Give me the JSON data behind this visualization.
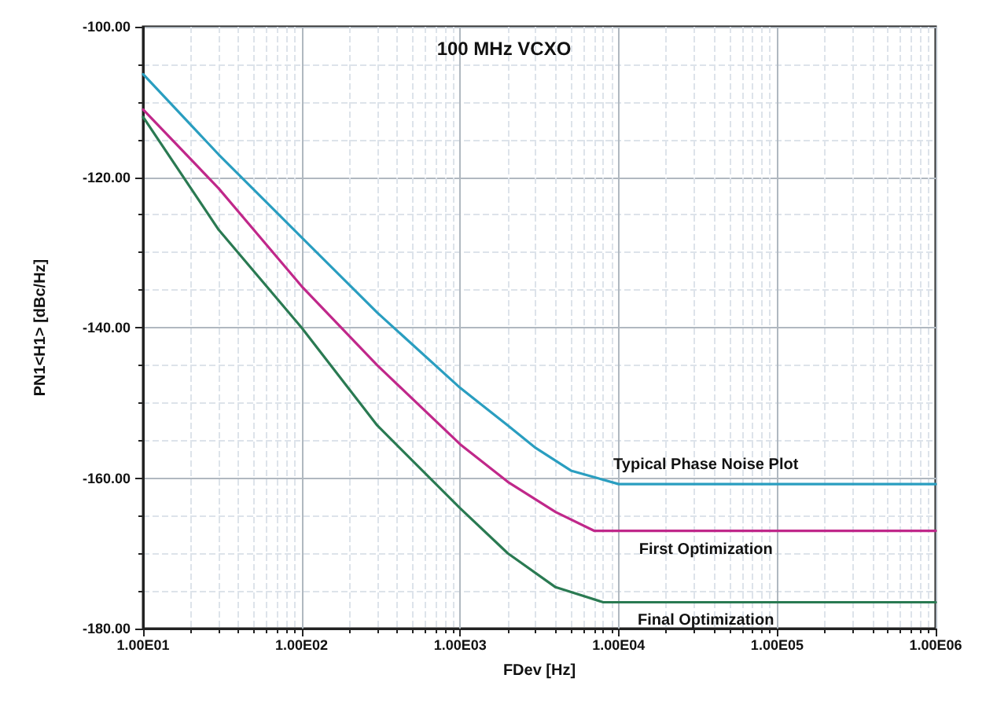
{
  "chart_data": {
    "type": "line",
    "title": "100 MHz VCXO",
    "xlabel": "FDev [Hz]",
    "ylabel": "PN1<H1> [dBc/Hz]",
    "log": "x",
    "grid": true,
    "legend": false,
    "marker": "none",
    "line_style": "solid",
    "xlim": [
      10,
      1000000
    ],
    "ylim": [
      -180,
      -100
    ],
    "xticks": [
      {
        "value": 10,
        "label": "1.00E01"
      },
      {
        "value": 100,
        "label": "1.00E02"
      },
      {
        "value": 1000,
        "label": "1.00E03"
      },
      {
        "value": 10000,
        "label": "1.00E04"
      },
      {
        "value": 100000,
        "label": "1.00E05"
      },
      {
        "value": 1000000,
        "label": "1.00E06"
      }
    ],
    "yticks": [
      {
        "value": -180,
        "label": "-180.00"
      },
      {
        "value": -160,
        "label": "-160.00"
      },
      {
        "value": -140,
        "label": "-140.00"
      },
      {
        "value": -120,
        "label": "-120.00"
      },
      {
        "value": -100,
        "label": "-100.00"
      }
    ],
    "series": [
      {
        "name": "Typical Phase Noise Plot",
        "color": "#2a9ec0",
        "x": [
          10,
          30,
          100,
          300,
          1000,
          2000,
          3000,
          5000,
          10000,
          1000000
        ],
        "values": [
          -106.3,
          -117,
          -128,
          -138,
          -148,
          -153,
          -156,
          -159,
          -160.8,
          -160.8
        ]
      },
      {
        "name": "First Optimization",
        "color": "#c0288a",
        "x": [
          10,
          30,
          100,
          300,
          1000,
          2000,
          4000,
          7000,
          1000000
        ],
        "values": [
          -111,
          -121.5,
          -134.5,
          -145,
          -155.5,
          -160.5,
          -164.5,
          -167,
          -167
        ]
      },
      {
        "name": "Final Optimization",
        "color": "#2a7a52",
        "x": [
          10,
          30,
          100,
          300,
          1000,
          2000,
          4000,
          8000,
          1000000
        ],
        "values": [
          -112,
          -127,
          -140,
          -153,
          -164,
          -170,
          -174.5,
          -176.5,
          -176.5
        ]
      }
    ]
  }
}
